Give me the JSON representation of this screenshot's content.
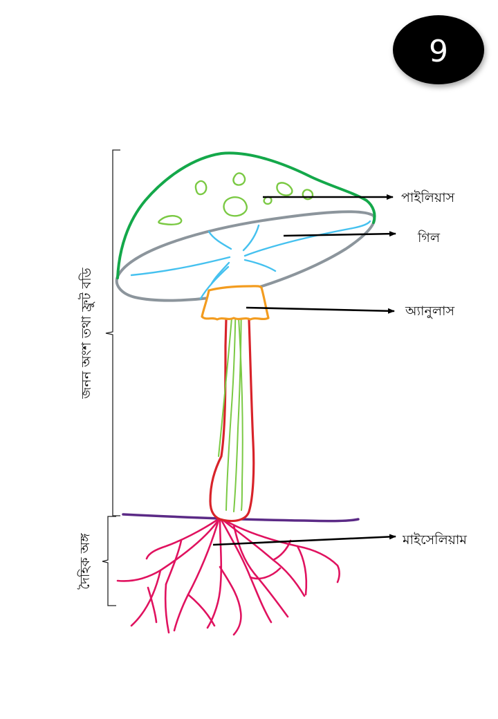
{
  "page_number": "9",
  "labels": {
    "pileus": "পাইলিয়াস",
    "gill": "গিল",
    "annulus": "অ্যানুলাস",
    "mycelium": "মাইসেলিয়াম"
  },
  "brackets": {
    "reproductive": "জনন অংশ তথা ফ্রুট বডি",
    "vegetative": "দৈহিক অঙ্গ"
  },
  "colors": {
    "cap_outline": "#14a84a",
    "cap_underside": "#8c959c",
    "spots": "#7ac943",
    "gills": "#45c1ef",
    "stipe": "#d8232a",
    "stipe_lines": "#7ac943",
    "annulus": "#f39c1f",
    "ground": "#5b2a86",
    "mycelium": "#e0125f",
    "arrows": "#000000",
    "badge_bg": "#000000",
    "badge_text": "#ffffff"
  }
}
